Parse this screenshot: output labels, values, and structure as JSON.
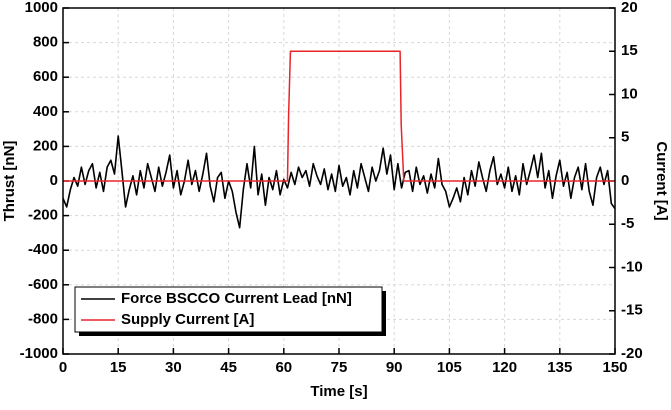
{
  "chart_data": {
    "type": "line",
    "xlabel": "Time [s]",
    "ylabel": "Thrust [nN]",
    "y2label": "Current [A]",
    "xlim": [
      0,
      150
    ],
    "xticks": [
      0,
      15,
      30,
      45,
      60,
      75,
      90,
      105,
      120,
      135,
      150
    ],
    "ylim": [
      -1000,
      1000
    ],
    "yticks": [
      -1000,
      -800,
      -600,
      -400,
      -200,
      0,
      200,
      400,
      600,
      800,
      1000
    ],
    "y2lim": [
      -20,
      20
    ],
    "y2ticks": [
      -20,
      -15,
      -10,
      -5,
      0,
      5,
      10,
      15,
      20
    ],
    "grid": true,
    "legend": "lower left",
    "series": [
      {
        "name": "Force BSCCO Current Lead [nN]",
        "color": "#000000",
        "x": [
          0,
          1,
          2,
          3,
          4,
          5,
          6,
          7,
          8,
          9,
          10,
          11,
          12,
          13,
          14,
          15,
          16,
          17,
          18,
          19,
          20,
          21,
          22,
          23,
          24,
          25,
          26,
          27,
          28,
          29,
          30,
          31,
          32,
          33,
          34,
          35,
          36,
          37,
          38,
          39,
          40,
          41,
          42,
          43,
          44,
          45,
          46,
          47,
          48,
          49,
          50,
          51,
          52,
          53,
          54,
          55,
          56,
          57,
          58,
          59,
          60,
          61,
          62,
          63,
          64,
          65,
          66,
          67,
          68,
          69,
          70,
          71,
          72,
          73,
          74,
          75,
          76,
          77,
          78,
          79,
          80,
          81,
          82,
          83,
          84,
          85,
          86,
          87,
          88,
          89,
          90,
          91,
          92,
          93,
          94,
          95,
          96,
          97,
          98,
          99,
          100,
          101,
          102,
          103,
          104,
          105,
          106,
          107,
          108,
          109,
          110,
          111,
          112,
          113,
          114,
          115,
          116,
          117,
          118,
          119,
          120,
          121,
          122,
          123,
          124,
          125,
          126,
          127,
          128,
          129,
          130,
          131,
          132,
          133,
          134,
          135,
          136,
          137,
          138,
          139,
          140,
          141,
          142,
          143,
          144,
          145,
          146,
          147,
          148,
          149,
          150
        ],
        "values": [
          -100,
          -150,
          -50,
          20,
          -30,
          80,
          -20,
          60,
          100,
          -40,
          50,
          -60,
          80,
          120,
          40,
          260,
          60,
          -150,
          -50,
          30,
          -80,
          60,
          -40,
          100,
          20,
          -60,
          80,
          -30,
          50,
          150,
          -40,
          60,
          -80,
          0,
          120,
          -20,
          60,
          -60,
          40,
          160,
          -30,
          -120,
          20,
          50,
          -100,
          0,
          -60,
          -180,
          -270,
          -50,
          100,
          -40,
          200,
          -80,
          40,
          -140,
          20,
          -50,
          60,
          -80,
          10,
          -40,
          50,
          -20,
          80,
          20,
          60,
          -30,
          100,
          30,
          -20,
          70,
          -50,
          40,
          -60,
          90,
          -30,
          20,
          -80,
          60,
          -40,
          100,
          20,
          -60,
          80,
          0,
          60,
          190,
          40,
          150,
          -50,
          100,
          -40,
          50,
          60,
          -60,
          80,
          -20,
          30,
          -70,
          40,
          -40,
          130,
          -20,
          -60,
          -150,
          -100,
          -40,
          -120,
          20,
          -80,
          60,
          -30,
          110,
          20,
          -60,
          60,
          140,
          -20,
          40,
          -40,
          80,
          -60,
          30,
          -80,
          100,
          -20,
          60,
          150,
          20,
          160,
          -40,
          60,
          -100,
          30,
          120,
          -30,
          50,
          -100,
          20,
          80,
          -50,
          100,
          -60,
          -140,
          20,
          80,
          -20,
          60,
          -130,
          -160
        ]
      },
      {
        "name": "Supply Current [A]",
        "color": "#e8262a",
        "axis": "y2",
        "x": [
          0,
          61,
          61.3,
          61.8,
          91.6,
          91.9,
          92.6,
          150
        ],
        "values": [
          0,
          0,
          7.5,
          15,
          15,
          6.5,
          0,
          0
        ]
      }
    ]
  }
}
